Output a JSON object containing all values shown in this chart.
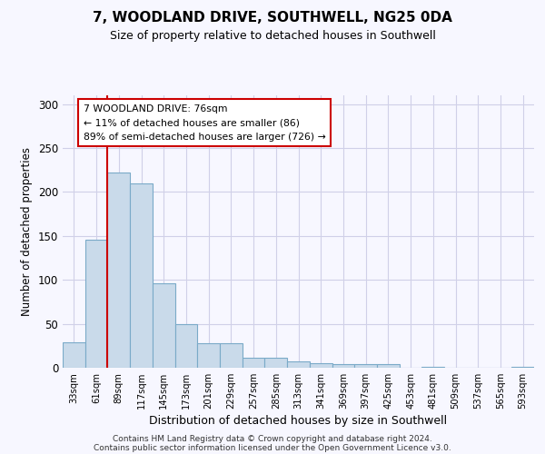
{
  "title": "7, WOODLAND DRIVE, SOUTHWELL, NG25 0DA",
  "subtitle": "Size of property relative to detached houses in Southwell",
  "xlabel": "Distribution of detached houses by size in Southwell",
  "ylabel": "Number of detached properties",
  "bar_color": "#c9daea",
  "bar_edge_color": "#7aaac8",
  "categories": [
    "33sqm",
    "61sqm",
    "89sqm",
    "117sqm",
    "145sqm",
    "173sqm",
    "201sqm",
    "229sqm",
    "257sqm",
    "285sqm",
    "313sqm",
    "341sqm",
    "369sqm",
    "397sqm",
    "425sqm",
    "453sqm",
    "481sqm",
    "509sqm",
    "537sqm",
    "565sqm",
    "593sqm"
  ],
  "values": [
    29,
    146,
    222,
    210,
    96,
    50,
    28,
    28,
    11,
    11,
    7,
    5,
    4,
    4,
    4,
    0,
    1,
    0,
    0,
    0,
    1
  ],
  "vline_x": 2,
  "vline_color": "#cc0000",
  "annotation_text": "7 WOODLAND DRIVE: 76sqm\n← 11% of detached houses are smaller (86)\n89% of semi-detached houses are larger (726) →",
  "ylim": [
    0,
    310
  ],
  "yticks": [
    0,
    50,
    100,
    150,
    200,
    250,
    300
  ],
  "footer1": "Contains HM Land Registry data © Crown copyright and database right 2024.",
  "footer2": "Contains public sector information licensed under the Open Government Licence v3.0.",
  "bg_color": "#f7f7ff",
  "grid_color": "#d0d0e8"
}
